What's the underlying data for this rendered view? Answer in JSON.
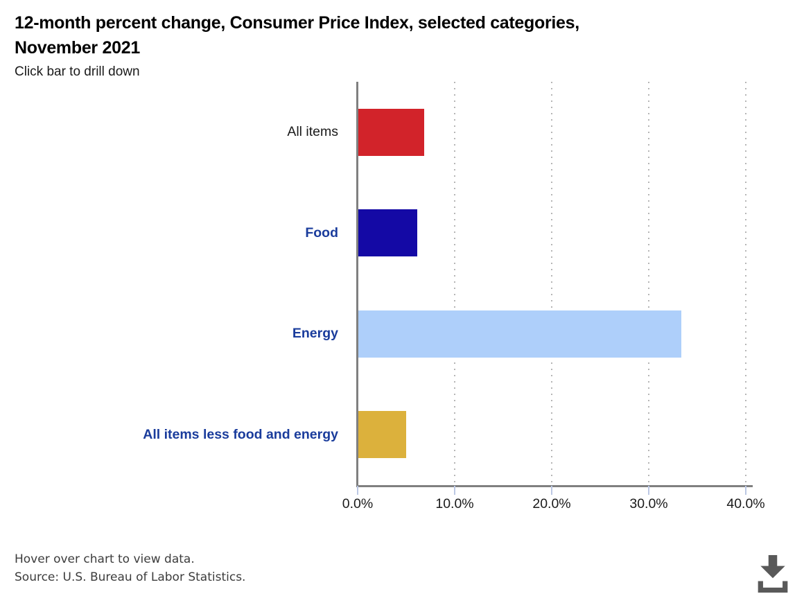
{
  "header": {
    "title_line1": "12-month percent change, Consumer Price Index, selected categories,",
    "title_line2": "November 2021",
    "subtitle": "Click bar to drill down"
  },
  "chart_data": {
    "type": "bar",
    "orientation": "horizontal",
    "title": "12-month percent change, Consumer Price Index, selected categories, November 2021",
    "categories": [
      "All items",
      "Food",
      "Energy",
      "All items less food and energy"
    ],
    "values": [
      6.8,
      6.1,
      33.3,
      4.9
    ],
    "unit": "%",
    "bar_colors": [
      "#d2232a",
      "#1409a5",
      "#aecffa",
      "#dcb13c"
    ],
    "category_is_link": [
      false,
      true,
      true,
      true
    ],
    "link_color": "#1a3c9c",
    "xlim": [
      0,
      40
    ],
    "x_ticks": [
      0,
      10,
      20,
      30,
      40
    ],
    "x_tick_labels": [
      "0.0%",
      "10.0%",
      "20.0%",
      "30.0%",
      "40.0%"
    ],
    "grid": "vertical-dotted",
    "legend": "none"
  },
  "footer": {
    "hover_note": "Hover over chart to view data.",
    "source": "Source: U.S. Bureau of Labor Statistics."
  },
  "download": {
    "icon": "download-icon",
    "color": "#595959"
  }
}
